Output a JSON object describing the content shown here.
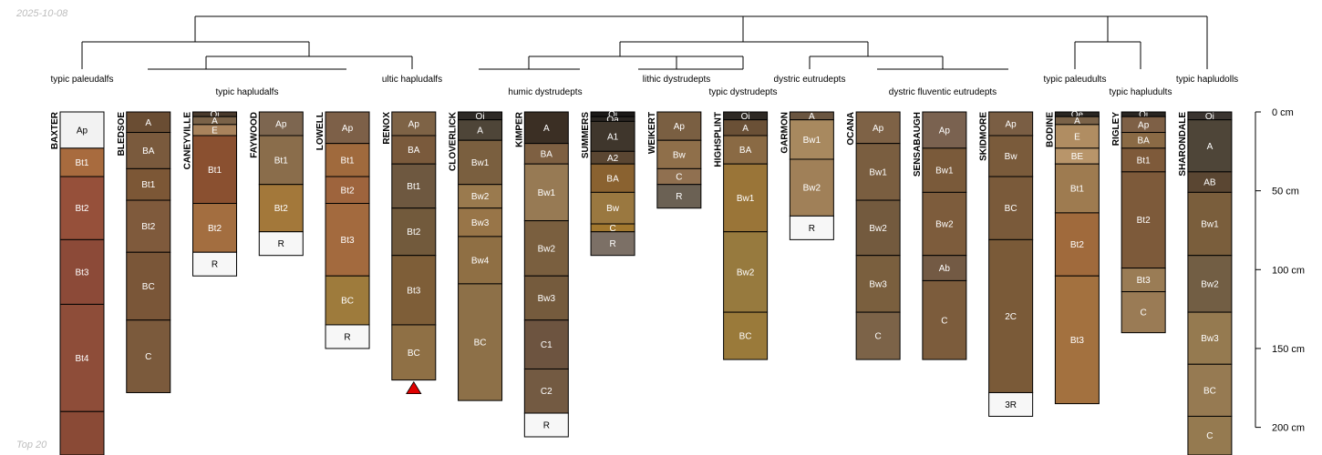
{
  "header": {
    "date": "2025-10-08",
    "footer_note": "Top 20"
  },
  "depth_axis": {
    "ticks": [
      0,
      50,
      100,
      150,
      200
    ],
    "unit": "cm"
  },
  "colors": {
    "outline": "#000000",
    "warning_marker": "#e00000"
  },
  "taxonomy_labels": [
    "typic paleudalfs",
    "typic hapludalfs",
    "ultic hapludalfs",
    "humic dystrudepts",
    "lithic dystrudepts",
    "typic dystrudepts",
    "dystric eutrudepts",
    "dystric fluventic eutrudepts",
    "typic paleudults",
    "typic hapludults",
    "typic hapludolls"
  ],
  "profiles": [
    {
      "name": "BAXTER",
      "horizons": [
        {
          "name": "Ap",
          "top": 0,
          "bottom": 23,
          "color": "#f2f2f2"
        },
        {
          "name": "Bt1",
          "top": 23,
          "bottom": 41,
          "color": "#a86b3e"
        },
        {
          "name": "Bt2",
          "top": 41,
          "bottom": 81,
          "color": "#96503a"
        },
        {
          "name": "Bt3",
          "top": 81,
          "bottom": 122,
          "color": "#8c4a38"
        },
        {
          "name": "Bt4",
          "top": 122,
          "bottom": 190,
          "color": "#8e4d39"
        },
        {
          "name": "",
          "top": 190,
          "bottom": 220,
          "color": "#8a4a36"
        }
      ]
    },
    {
      "name": "BLEDSOE",
      "horizons": [
        {
          "name": "A",
          "top": 0,
          "bottom": 13,
          "color": "#6a4d33"
        },
        {
          "name": "BA",
          "top": 13,
          "bottom": 36,
          "color": "#7a5a3d"
        },
        {
          "name": "Bt1",
          "top": 36,
          "bottom": 56,
          "color": "#7c5736"
        },
        {
          "name": "Bt2",
          "top": 56,
          "bottom": 89,
          "color": "#7f5a3c"
        },
        {
          "name": "BC",
          "top": 89,
          "bottom": 132,
          "color": "#7a5638"
        },
        {
          "name": "C",
          "top": 132,
          "bottom": 178,
          "color": "#7b5a3c"
        }
      ]
    },
    {
      "name": "CANEYVILLE",
      "horizons": [
        {
          "name": "Oi",
          "top": 0,
          "bottom": 3,
          "color": "#4a3a2c"
        },
        {
          "name": "A",
          "top": 3,
          "bottom": 8,
          "color": "#7a6248"
        },
        {
          "name": "E",
          "top": 8,
          "bottom": 15,
          "color": "#a9835c"
        },
        {
          "name": "Bt1",
          "top": 15,
          "bottom": 58,
          "color": "#8a5030"
        },
        {
          "name": "Bt2",
          "top": 58,
          "bottom": 89,
          "color": "#a36e40"
        },
        {
          "name": "R",
          "top": 89,
          "bottom": 104,
          "color": "#f7f7f7"
        }
      ]
    },
    {
      "name": "FAYWOOD",
      "horizons": [
        {
          "name": "Ap",
          "top": 0,
          "bottom": 15,
          "color": "#7d6650"
        },
        {
          "name": "Bt1",
          "top": 15,
          "bottom": 46,
          "color": "#8a6d4b"
        },
        {
          "name": "Bt2",
          "top": 46,
          "bottom": 76,
          "color": "#a3783a"
        },
        {
          "name": "R",
          "top": 76,
          "bottom": 91,
          "color": "#f7f7f7"
        }
      ]
    },
    {
      "name": "LOWELL",
      "horizons": [
        {
          "name": "Ap",
          "top": 0,
          "bottom": 20,
          "color": "#7d6048"
        },
        {
          "name": "Bt1",
          "top": 20,
          "bottom": 41,
          "color": "#a06a3d"
        },
        {
          "name": "Bt2",
          "top": 41,
          "bottom": 58,
          "color": "#9e643d"
        },
        {
          "name": "Bt3",
          "top": 58,
          "bottom": 104,
          "color": "#a36a3e"
        },
        {
          "name": "BC",
          "top": 104,
          "bottom": 135,
          "color": "#9e7b3c"
        },
        {
          "name": "R",
          "top": 135,
          "bottom": 150,
          "color": "#f7f7f7"
        }
      ]
    },
    {
      "name": "RENOX",
      "horizons": [
        {
          "name": "Ap",
          "top": 0,
          "bottom": 15,
          "color": "#7e6346"
        },
        {
          "name": "BA",
          "top": 15,
          "bottom": 33,
          "color": "#7a5a3c"
        },
        {
          "name": "Bt1",
          "top": 33,
          "bottom": 61,
          "color": "#6e5840"
        },
        {
          "name": "Bt2",
          "top": 61,
          "bottom": 91,
          "color": "#725a3c"
        },
        {
          "name": "Bt3",
          "top": 91,
          "bottom": 135,
          "color": "#7e5e38"
        },
        {
          "name": "BC",
          "top": 135,
          "bottom": 170,
          "color": "#8f7045"
        }
      ],
      "warning": true
    },
    {
      "name": "CLOVERLICK",
      "horizons": [
        {
          "name": "Oi",
          "top": 0,
          "bottom": 5,
          "color": "#2e2a26"
        },
        {
          "name": "A",
          "top": 5,
          "bottom": 18,
          "color": "#4e4538"
        },
        {
          "name": "Bw1",
          "top": 18,
          "bottom": 46,
          "color": "#7a5f3f"
        },
        {
          "name": "Bw2",
          "top": 46,
          "bottom": 61,
          "color": "#9a7a4e"
        },
        {
          "name": "Bw3",
          "top": 61,
          "bottom": 79,
          "color": "#987548"
        },
        {
          "name": "Bw4",
          "top": 79,
          "bottom": 109,
          "color": "#8f6f44"
        },
        {
          "name": "BC",
          "top": 109,
          "bottom": 183,
          "color": "#8d7048"
        }
      ]
    },
    {
      "name": "KIMPER",
      "horizons": [
        {
          "name": "A",
          "top": 0,
          "bottom": 20,
          "color": "#3b2f24"
        },
        {
          "name": "BA",
          "top": 20,
          "bottom": 33,
          "color": "#7e6042"
        },
        {
          "name": "Bw1",
          "top": 33,
          "bottom": 69,
          "color": "#977a54"
        },
        {
          "name": "Bw2",
          "top": 69,
          "bottom": 104,
          "color": "#7a5f3f"
        },
        {
          "name": "Bw3",
          "top": 104,
          "bottom": 132,
          "color": "#755b3d"
        },
        {
          "name": "C1",
          "top": 132,
          "bottom": 163,
          "color": "#6d5440"
        },
        {
          "name": "C2",
          "top": 163,
          "bottom": 191,
          "color": "#735a42"
        },
        {
          "name": "R",
          "top": 191,
          "bottom": 206,
          "color": "#f7f7f7"
        }
      ]
    },
    {
      "name": "SUMMERS",
      "horizons": [
        {
          "name": "Oi",
          "top": 0,
          "bottom": 3,
          "color": "#1c1a18"
        },
        {
          "name": "Oa",
          "top": 3,
          "bottom": 6,
          "color": "#2a2622"
        },
        {
          "name": "A1",
          "top": 6,
          "bottom": 25,
          "color": "#3f362c"
        },
        {
          "name": "A2",
          "top": 25,
          "bottom": 33,
          "color": "#5a4632"
        },
        {
          "name": "BA",
          "top": 33,
          "bottom": 51,
          "color": "#8a6230"
        },
        {
          "name": "Bw",
          "top": 51,
          "bottom": 71,
          "color": "#9a7840"
        },
        {
          "name": "C",
          "top": 71,
          "bottom": 76,
          "color": "#a2782f"
        },
        {
          "name": "R",
          "top": 76,
          "bottom": 91,
          "color": "#7c7066"
        }
      ]
    },
    {
      "name": "WEIKERT",
      "horizons": [
        {
          "name": "Ap",
          "top": 0,
          "bottom": 18,
          "color": "#7a5f42"
        },
        {
          "name": "Bw",
          "top": 18,
          "bottom": 36,
          "color": "#8f6f4a"
        },
        {
          "name": "C",
          "top": 36,
          "bottom": 46,
          "color": "#907050"
        },
        {
          "name": "R",
          "top": 46,
          "bottom": 61,
          "color": "#6b6154"
        }
      ]
    },
    {
      "name": "HIGHSPLINT",
      "horizons": [
        {
          "name": "Oi",
          "top": 0,
          "bottom": 5,
          "color": "#2e2924"
        },
        {
          "name": "A",
          "top": 5,
          "bottom": 15,
          "color": "#6a5036"
        },
        {
          "name": "BA",
          "top": 15,
          "bottom": 33,
          "color": "#8a6a44"
        },
        {
          "name": "Bw1",
          "top": 33,
          "bottom": 76,
          "color": "#9a7538"
        },
        {
          "name": "Bw2",
          "top": 76,
          "bottom": 127,
          "color": "#977a3e"
        },
        {
          "name": "BC",
          "top": 127,
          "bottom": 157,
          "color": "#9a7a3a"
        }
      ]
    },
    {
      "name": "GARMON",
      "horizons": [
        {
          "name": "A",
          "top": 0,
          "bottom": 5,
          "color": "#6a5540"
        },
        {
          "name": "Bw1",
          "top": 5,
          "bottom": 30,
          "color": "#a8895f"
        },
        {
          "name": "Bw2",
          "top": 30,
          "bottom": 66,
          "color": "#a08058"
        },
        {
          "name": "R",
          "top": 66,
          "bottom": 81,
          "color": "#f7f7f7"
        }
      ]
    },
    {
      "name": "OCANA",
      "horizons": [
        {
          "name": "Ap",
          "top": 0,
          "bottom": 20,
          "color": "#7e6246"
        },
        {
          "name": "Bw1",
          "top": 20,
          "bottom": 56,
          "color": "#7a5e40"
        },
        {
          "name": "Bw2",
          "top": 56,
          "bottom": 91,
          "color": "#735a3e"
        },
        {
          "name": "Bw3",
          "top": 91,
          "bottom": 127,
          "color": "#7a5f3e"
        },
        {
          "name": "C",
          "top": 127,
          "bottom": 157,
          "color": "#7c6348"
        }
      ]
    },
    {
      "name": "SENSABAUGH",
      "horizons": [
        {
          "name": "Ap",
          "top": 0,
          "bottom": 23,
          "color": "#7a6250"
        },
        {
          "name": "Bw1",
          "top": 23,
          "bottom": 51,
          "color": "#7a5a3a"
        },
        {
          "name": "Bw2",
          "top": 51,
          "bottom": 91,
          "color": "#7d5c3c"
        },
        {
          "name": "Ab",
          "top": 91,
          "bottom": 107,
          "color": "#735a44"
        },
        {
          "name": "C",
          "top": 107,
          "bottom": 157,
          "color": "#7c5c3c"
        }
      ]
    },
    {
      "name": "SKIDMORE",
      "horizons": [
        {
          "name": "Ap",
          "top": 0,
          "bottom": 15,
          "color": "#7a5e44"
        },
        {
          "name": "Bw",
          "top": 15,
          "bottom": 41,
          "color": "#7a5b3b"
        },
        {
          "name": "BC",
          "top": 41,
          "bottom": 81,
          "color": "#7a5a3a"
        },
        {
          "name": "2C",
          "top": 81,
          "bottom": 178,
          "color": "#7a5a38"
        },
        {
          "name": "3R",
          "top": 178,
          "bottom": 193,
          "color": "#f7f7f7"
        }
      ]
    },
    {
      "name": "BODINE",
      "horizons": [
        {
          "name": "Oe",
          "top": 0,
          "bottom": 3,
          "color": "#2a2622"
        },
        {
          "name": "A",
          "top": 3,
          "bottom": 8,
          "color": "#7a6248"
        },
        {
          "name": "E",
          "top": 8,
          "bottom": 23,
          "color": "#b08d62"
        },
        {
          "name": "BE",
          "top": 23,
          "bottom": 33,
          "color": "#b8956a"
        },
        {
          "name": "Bt1",
          "top": 33,
          "bottom": 64,
          "color": "#9e7b50"
        },
        {
          "name": "Bt2",
          "top": 64,
          "bottom": 104,
          "color": "#a06a3c"
        },
        {
          "name": "Bt3",
          "top": 104,
          "bottom": 185,
          "color": "#a3713f"
        }
      ]
    },
    {
      "name": "RIGLEY",
      "horizons": [
        {
          "name": "Oi",
          "top": 0,
          "bottom": 3,
          "color": "#2a2622"
        },
        {
          "name": "Ap",
          "top": 3,
          "bottom": 13,
          "color": "#7e6046"
        },
        {
          "name": "BA",
          "top": 13,
          "bottom": 23,
          "color": "#8a6a45"
        },
        {
          "name": "Bt1",
          "top": 23,
          "bottom": 38,
          "color": "#7e5a3a"
        },
        {
          "name": "Bt2",
          "top": 38,
          "bottom": 99,
          "color": "#7d5a3a"
        },
        {
          "name": "Bt3",
          "top": 99,
          "bottom": 114,
          "color": "#9a7c55"
        },
        {
          "name": "C",
          "top": 114,
          "bottom": 140,
          "color": "#9a7b55"
        }
      ]
    },
    {
      "name": "SHARONDALE",
      "horizons": [
        {
          "name": "Oi",
          "top": 0,
          "bottom": 5,
          "color": "#3a3430"
        },
        {
          "name": "A",
          "top": 5,
          "bottom": 38,
          "color": "#4e4538"
        },
        {
          "name": "AB",
          "top": 38,
          "bottom": 51,
          "color": "#5a4632"
        },
        {
          "name": "Bw1",
          "top": 51,
          "bottom": 91,
          "color": "#7a5e3c"
        },
        {
          "name": "Bw2",
          "top": 91,
          "bottom": 127,
          "color": "#725e44"
        },
        {
          "name": "Bw3",
          "top": 127,
          "bottom": 160,
          "color": "#957a50"
        },
        {
          "name": "BC",
          "top": 160,
          "bottom": 193,
          "color": "#967a52"
        },
        {
          "name": "C",
          "top": 193,
          "bottom": 225,
          "color": "#957a50"
        }
      ]
    }
  ]
}
